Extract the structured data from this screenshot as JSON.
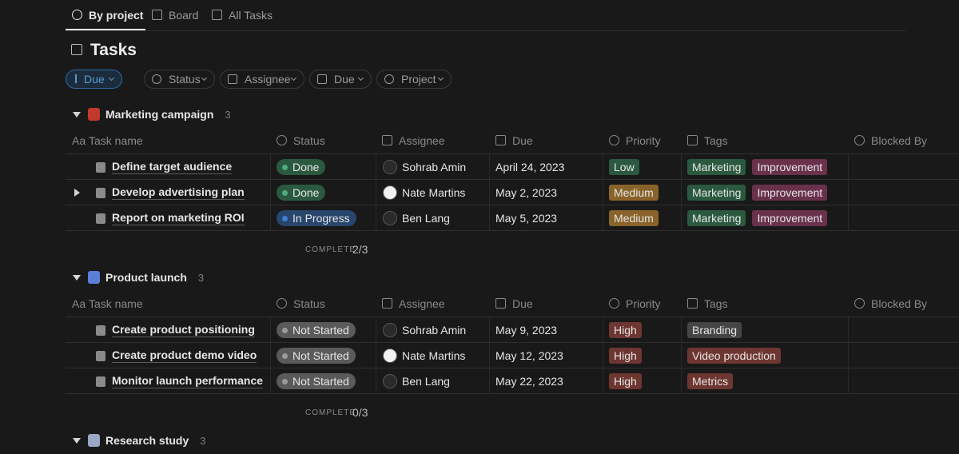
{
  "tabs": [
    "By project",
    "Board",
    "All Tasks"
  ],
  "title": "Tasks",
  "filters": [
    "Due",
    "Status",
    "Assignee",
    "Due",
    "Project"
  ],
  "title_icon": "Aa",
  "columns": [
    "Task name",
    "Status",
    "Assignee",
    "Due",
    "Priority",
    "Tags",
    "Blocked By"
  ],
  "groups": [
    {
      "name": "Marketing campaign",
      "count": 3,
      "complete_label": "COMPLETE",
      "complete": "2/3",
      "rows": [
        {
          "name": "Define target audience",
          "status": {
            "text": "Done",
            "color": "#2b593f",
            "dot": "#4dab7f"
          },
          "assignee": {
            "text": "Sohrab Amin",
            "avatar": "#2a2a2a"
          },
          "due": "April 24, 2023",
          "priority": {
            "text": "Low",
            "color": "#2b593f"
          },
          "tags": [
            {
              "text": "Marketing",
              "color": "#2b593f"
            },
            {
              "text": "Improvement",
              "color": "#69314c"
            }
          ]
        },
        {
          "name": "Develop advertising plan",
          "expand": true,
          "status": {
            "text": "Done",
            "color": "#2b593f",
            "dot": "#4dab7f"
          },
          "assignee": {
            "text": "Nate Martins",
            "avatar": "#f2f2f2"
          },
          "due": "May 2, 2023",
          "priority": {
            "text": "Medium",
            "color": "#89632a"
          },
          "tags": [
            {
              "text": "Marketing",
              "color": "#2b593f"
            },
            {
              "text": "Improvement",
              "color": "#69314c"
            }
          ]
        },
        {
          "name": "Report on marketing ROI",
          "status": {
            "text": "In Progress",
            "color": "#28456c",
            "dot": "#3b82d6"
          },
          "assignee": {
            "text": "Ben Lang",
            "avatar": "#2a2a2a"
          },
          "due": "May 5, 2023",
          "priority": {
            "text": "Medium",
            "color": "#89632a"
          },
          "tags": [
            {
              "text": "Marketing",
              "color": "#2b593f"
            },
            {
              "text": "Improvement",
              "color": "#69314c"
            }
          ]
        }
      ]
    },
    {
      "name": "Product launch",
      "count": 3,
      "complete_label": "COMPLETE",
      "complete": "0/3",
      "rows": [
        {
          "name": "Create product positioning",
          "status": {
            "text": "Not Started",
            "color": "#5a5a5a",
            "dot": "#9b9b9b"
          },
          "assignee": {
            "text": "Sohrab Amin",
            "avatar": "#2a2a2a"
          },
          "due": "May 9, 2023",
          "priority": {
            "text": "High",
            "color": "#6e3630"
          },
          "tags": [
            {
              "text": "Branding",
              "color": "#454545"
            }
          ]
        },
        {
          "name": "Create product demo video",
          "status": {
            "text": "Not Started",
            "color": "#5a5a5a",
            "dot": "#9b9b9b"
          },
          "assignee": {
            "text": "Nate Martins",
            "avatar": "#f2f2f2"
          },
          "due": "May 12, 2023",
          "priority": {
            "text": "High",
            "color": "#6e3630"
          },
          "tags": [
            {
              "text": "Video production",
              "color": "#6e3630"
            }
          ]
        },
        {
          "name": "Monitor launch performance",
          "status": {
            "text": "Not Started",
            "color": "#5a5a5a",
            "dot": "#9b9b9b"
          },
          "assignee": {
            "text": "Ben Lang",
            "avatar": "#2a2a2a"
          },
          "due": "May 22, 2023",
          "priority": {
            "text": "High",
            "color": "#6e3630"
          },
          "tags": [
            {
              "text": "Metrics",
              "color": "#6e3630"
            }
          ]
        }
      ]
    },
    {
      "name": "Research study",
      "count": 3,
      "rows": []
    }
  ]
}
